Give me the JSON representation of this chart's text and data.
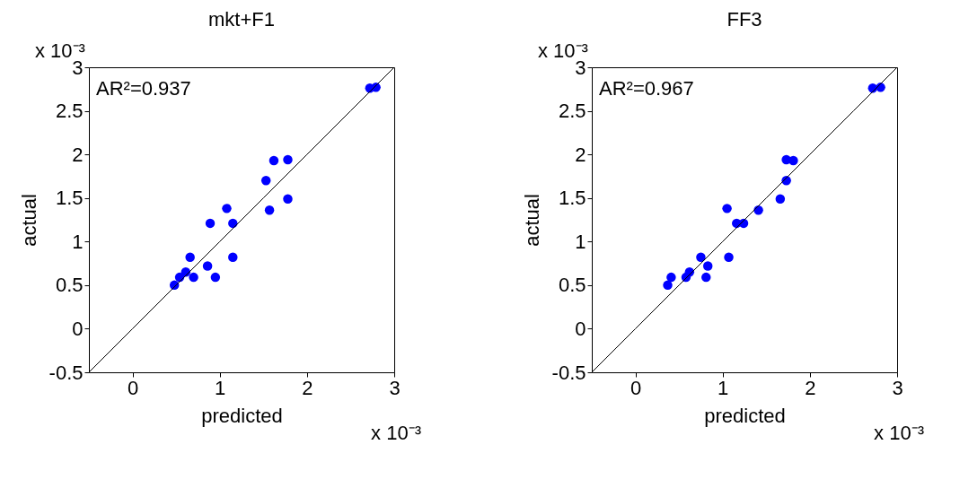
{
  "chart_data": [
    {
      "type": "scatter",
      "title": "mkt+F1",
      "xlabel": "predicted",
      "ylabel": "actual",
      "xlim": [
        -0.5,
        3
      ],
      "ylim": [
        -0.5,
        3
      ],
      "xticks": [
        0,
        1,
        2,
        3
      ],
      "yticks": [
        -0.5,
        0,
        0.5,
        1,
        1.5,
        2,
        2.5,
        3
      ],
      "grid": false,
      "annotations": [
        "AR²=0.937",
        "x 10⁻³",
        "x 10⁻³"
      ],
      "series": [
        {
          "color": "#0000ff",
          "marker": "circle",
          "x": [
            2.72,
            2.79,
            1.78,
            1.62,
            1.53,
            1.78,
            1.57,
            1.08,
            0.89,
            1.15,
            0.66,
            1.15,
            0.86,
            0.61,
            0.54,
            0.7,
            0.95,
            0.48
          ],
          "values": [
            2.76,
            2.77,
            1.94,
            1.93,
            1.7,
            1.49,
            1.36,
            1.38,
            1.21,
            1.21,
            0.82,
            0.82,
            0.72,
            0.65,
            0.59,
            0.59,
            0.59,
            0.5
          ]
        },
        {
          "type": "line",
          "color": "#000000",
          "line_style": "solid",
          "x": [
            -0.5,
            0,
            0.5,
            1,
            1.5,
            2,
            2.5,
            3
          ],
          "values": [
            -0.5,
            0,
            0.5,
            1,
            1.5,
            2,
            2.5,
            3
          ]
        }
      ]
    },
    {
      "type": "scatter",
      "title": "FF3",
      "xlabel": "predicted",
      "ylabel": "actual",
      "xlim": [
        -0.5,
        3
      ],
      "ylim": [
        -0.5,
        3
      ],
      "xticks": [
        0,
        1,
        2,
        3
      ],
      "yticks": [
        -0.5,
        0,
        0.5,
        1,
        1.5,
        2,
        2.5,
        3
      ],
      "grid": false,
      "annotations": [
        "AR²=0.967",
        "x 10⁻³",
        "x 10⁻³"
      ],
      "series": [
        {
          "color": "#0000ff",
          "marker": "circle",
          "x": [
            2.72,
            2.81,
            1.73,
            1.81,
            1.73,
            1.66,
            1.41,
            1.05,
            1.16,
            1.24,
            0.75,
            1.07,
            0.83,
            0.62,
            0.41,
            0.58,
            0.81,
            0.37
          ],
          "values": [
            2.76,
            2.77,
            1.94,
            1.93,
            1.7,
            1.49,
            1.36,
            1.38,
            1.21,
            1.21,
            0.82,
            0.82,
            0.72,
            0.65,
            0.59,
            0.59,
            0.59,
            0.5
          ]
        },
        {
          "type": "line",
          "color": "#000000",
          "line_style": "solid",
          "x": [
            -0.5,
            0,
            0.5,
            1,
            1.5,
            2,
            2.5,
            3
          ],
          "values": [
            -0.5,
            0,
            0.5,
            1,
            1.5,
            2,
            2.5,
            3
          ]
        }
      ]
    }
  ]
}
